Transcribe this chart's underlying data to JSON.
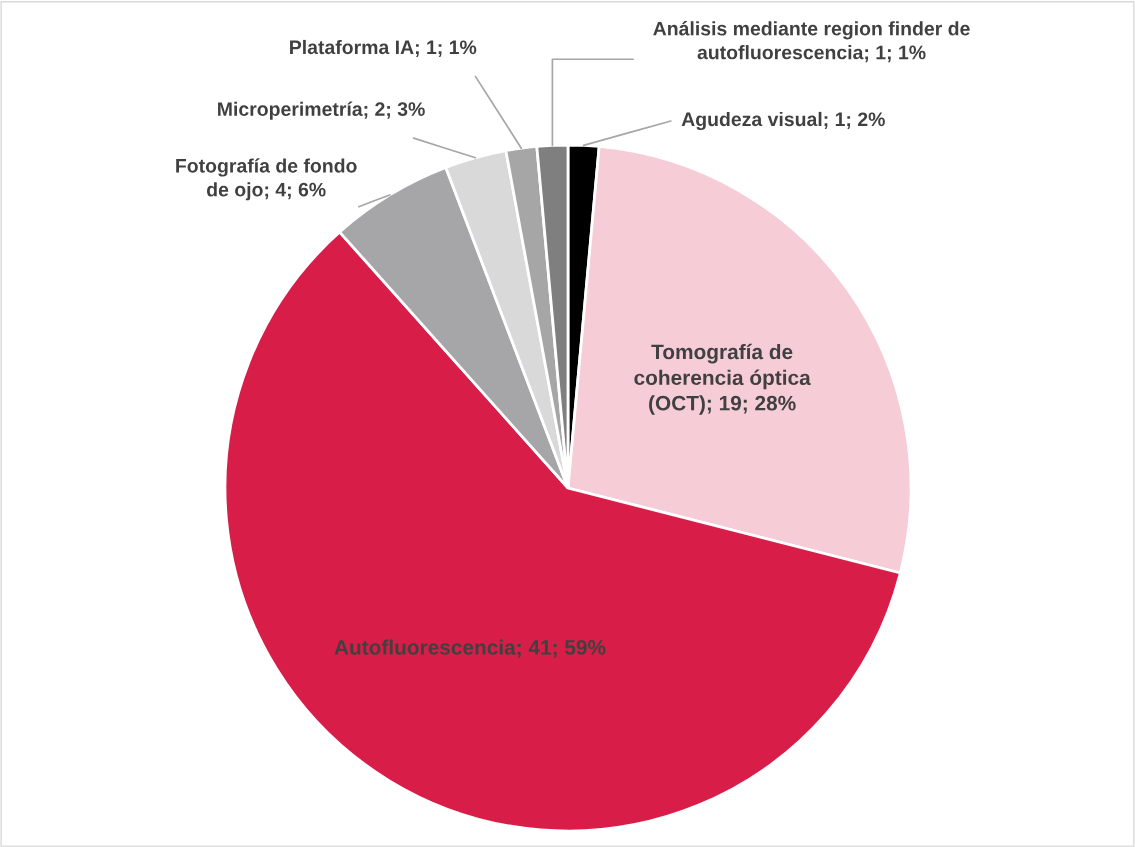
{
  "chart_data": {
    "type": "pie",
    "categories": [
      "Agudeza visual",
      "Tomografía de\ncoherencia óptica\n(OCT)",
      "Autofluorescencia",
      "Fotografía de fondo\nde ojo",
      "Microperimetría",
      "Plataforma IA",
      "Análisis mediante region finder de\nautofluorescencia"
    ],
    "values": [
      1,
      19,
      41,
      4,
      2,
      1,
      1
    ],
    "value_labels": [
      "1; 2%",
      "19; 28%",
      "41; 59%",
      "4; 6%",
      "2; 3%",
      "1; 1%",
      "1; 1%"
    ],
    "colors": [
      "#000000",
      "#f6ccd6",
      "#d81e48",
      "#a6a6a8",
      "#d9d9d9",
      "#a6a6a6",
      "#7f7f7f"
    ],
    "legend": false
  }
}
